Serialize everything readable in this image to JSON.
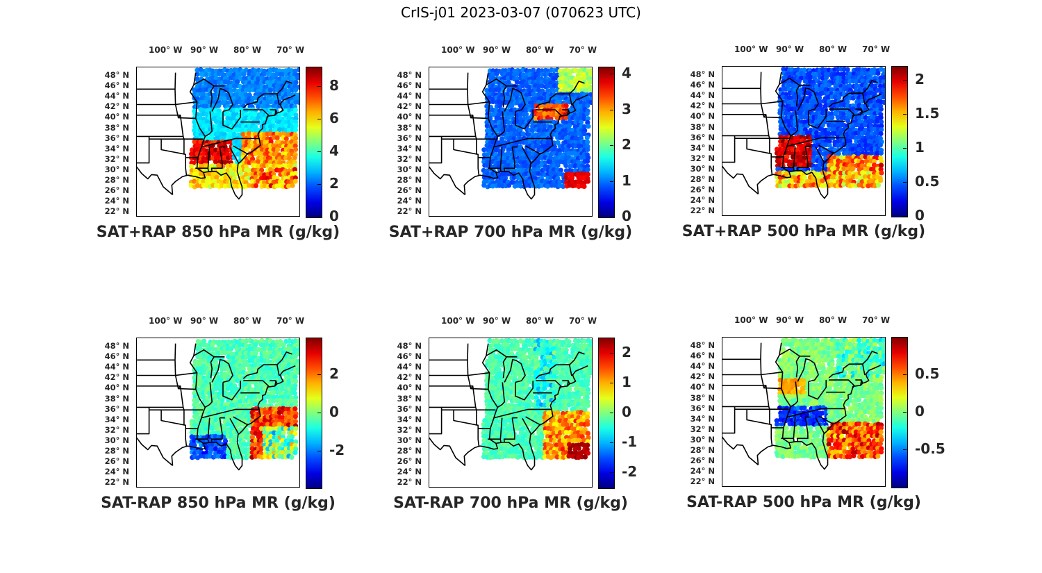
{
  "figure": {
    "title": "CrIS-j01 2023-03-07 (070623 UTC)"
  },
  "axes": {
    "lon_labels": [
      "100° W",
      "90° W",
      "80° W",
      "70° W"
    ],
    "lat_labels": [
      "48° N",
      "46° N",
      "44° N",
      "42° N",
      "40° N",
      "38° N",
      "36° N",
      "34° N",
      "32° N",
      "30° N",
      "28° N",
      "26° N",
      "24° N",
      "22° N"
    ]
  },
  "colormap": "jet",
  "panels": [
    {
      "id": "p1",
      "title": "SAT+RAP 850 hPa MR (g/kg)",
      "vmin": 0,
      "vmax": 9.2,
      "ticks": [
        {
          "v": 0,
          "label": "0"
        },
        {
          "v": 2,
          "label": "2"
        },
        {
          "v": 4,
          "label": "4"
        },
        {
          "v": 6,
          "label": "6"
        },
        {
          "v": 8,
          "label": "8"
        }
      ],
      "field": "sum850"
    },
    {
      "id": "p2",
      "title": "SAT+RAP 700 hPa MR (g/kg)",
      "vmin": 0,
      "vmax": 4.2,
      "ticks": [
        {
          "v": 0,
          "label": "0"
        },
        {
          "v": 1,
          "label": "1"
        },
        {
          "v": 2,
          "label": "2"
        },
        {
          "v": 3,
          "label": "3"
        },
        {
          "v": 4,
          "label": "4"
        }
      ],
      "field": "sum700"
    },
    {
      "id": "p3",
      "title": "SAT+RAP 500 hPa MR (g/kg)",
      "vmin": 0,
      "vmax": 2.2,
      "ticks": [
        {
          "v": 0,
          "label": "0"
        },
        {
          "v": 0.5,
          "label": "0.5"
        },
        {
          "v": 1,
          "label": "1"
        },
        {
          "v": 1.5,
          "label": "1.5"
        },
        {
          "v": 2,
          "label": "2"
        }
      ],
      "field": "sum500"
    },
    {
      "id": "p4",
      "title": "SAT-RAP 850 hPa MR (g/kg)",
      "vmin": -3.9,
      "vmax": 3.9,
      "ticks": [
        {
          "v": -2,
          "label": "-2"
        },
        {
          "v": 0,
          "label": "0"
        },
        {
          "v": 2,
          "label": "2"
        }
      ],
      "field": "diff850"
    },
    {
      "id": "p5",
      "title": "SAT-RAP 700 hPa MR (g/kg)",
      "vmin": -2.5,
      "vmax": 2.5,
      "ticks": [
        {
          "v": -2,
          "label": "-2"
        },
        {
          "v": -1,
          "label": "-1"
        },
        {
          "v": 0,
          "label": "0"
        },
        {
          "v": 1,
          "label": "1"
        },
        {
          "v": 2,
          "label": "2"
        }
      ],
      "field": "diff700"
    },
    {
      "id": "p6",
      "title": "SAT-RAP 500 hPa MR (g/kg)",
      "vmin": -1,
      "vmax": 1,
      "ticks": [
        {
          "v": -0.5,
          "label": "-0.5"
        },
        {
          "v": 0,
          "label": "0"
        },
        {
          "v": 0.5,
          "label": "0.5"
        }
      ],
      "field": "diff500"
    }
  ]
}
